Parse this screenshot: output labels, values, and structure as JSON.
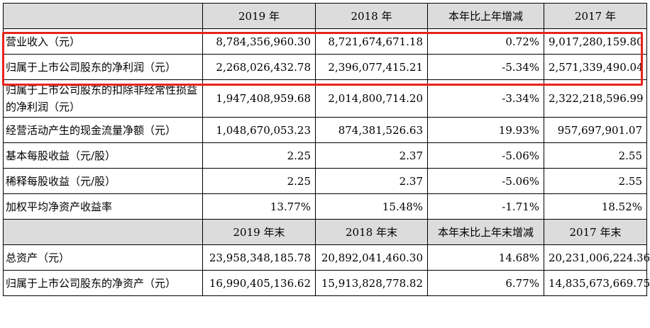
{
  "header1": [
    "",
    "2019 年",
    "2018 年",
    "本年比上年增减",
    "2017 年"
  ],
  "rows1": [
    [
      "营业收入（元）",
      "8,784,356,960.30",
      "8,721,674,671.18",
      "0.72%",
      "9,017,280,159.80"
    ],
    [
      "归属于上市公司股东的净利润（元）",
      "2,268,026,432.78",
      "2,396,077,415.21",
      "-5.34%",
      "2,571,339,490.04"
    ],
    [
      "归属于上市公司股东的扣除非经常性损益的净利润（元）",
      "1,947,408,959.68",
      "2,014,800,714.20",
      "-3.34%",
      "2,322,218,596.99"
    ],
    [
      "经营活动产生的现金流量净额（元）",
      "1,048,670,053.23",
      "874,381,526.63",
      "19.93%",
      "957,697,901.07"
    ],
    [
      "基本每股收益（元/股）",
      "2.25",
      "2.37",
      "-5.06%",
      "2.55"
    ],
    [
      "稀释每股收益（元/股）",
      "2.25",
      "2.37",
      "-5.06%",
      "2.55"
    ],
    [
      "加权平均净资产收益率",
      "13.77%",
      "15.48%",
      "-1.71%",
      "18.52%"
    ]
  ],
  "header2": [
    "",
    "2019 年末",
    "2018 年末",
    "本年末比上年末增减",
    "2017 年末"
  ],
  "rows2": [
    [
      "总资产（元）",
      "23,958,348,185.78",
      "20,892,041,460.30",
      "14.68%",
      "20,231,006,224.36"
    ],
    [
      "归属于上市公司股东的净资产（元）",
      "16,990,405,136.62",
      "15,913,828,778.82",
      "6.77%",
      "14,835,673,669.75"
    ]
  ],
  "highlight_color": "#e8231e"
}
